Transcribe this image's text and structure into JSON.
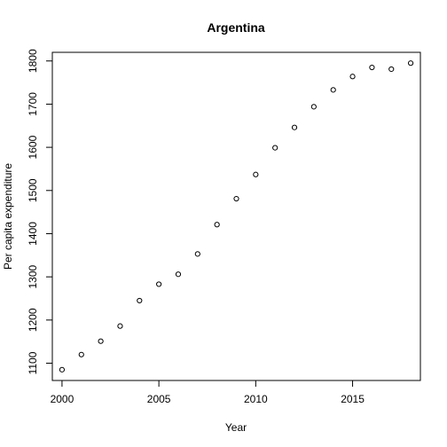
{
  "chart_data": {
    "type": "scatter",
    "title": "Argentina",
    "xlabel": "Year",
    "ylabel": "Per capita expenditure",
    "xlim": [
      1999.5,
      2018.5
    ],
    "ylim": [
      1060,
      1820
    ],
    "xticks": [
      2000,
      2005,
      2010,
      2015
    ],
    "yticks": [
      1100,
      1200,
      1300,
      1400,
      1500,
      1600,
      1700,
      1800
    ],
    "grid": false,
    "legend": "none",
    "marker": "open-circle",
    "points": [
      {
        "x": 2000,
        "y": 1085
      },
      {
        "x": 2001,
        "y": 1120
      },
      {
        "x": 2002,
        "y": 1151
      },
      {
        "x": 2003,
        "y": 1186
      },
      {
        "x": 2004,
        "y": 1245
      },
      {
        "x": 2005,
        "y": 1283
      },
      {
        "x": 2006,
        "y": 1306
      },
      {
        "x": 2007,
        "y": 1353
      },
      {
        "x": 2008,
        "y": 1421
      },
      {
        "x": 2009,
        "y": 1481
      },
      {
        "x": 2010,
        "y": 1537
      },
      {
        "x": 2011,
        "y": 1599
      },
      {
        "x": 2012,
        "y": 1646
      },
      {
        "x": 2013,
        "y": 1694
      },
      {
        "x": 2014,
        "y": 1733
      },
      {
        "x": 2015,
        "y": 1764
      },
      {
        "x": 2016,
        "y": 1785
      },
      {
        "x": 2017,
        "y": 1781
      },
      {
        "x": 2018,
        "y": 1795
      }
    ]
  }
}
